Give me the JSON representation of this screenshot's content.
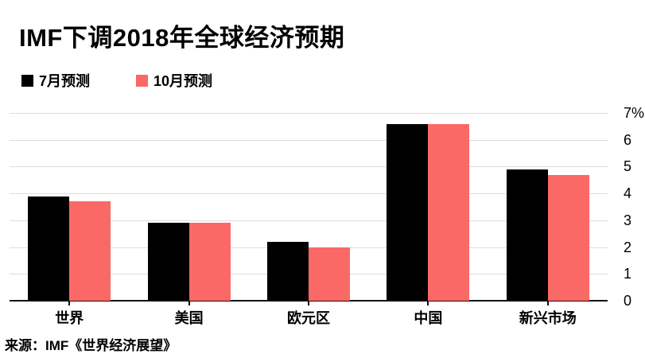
{
  "title": "IMF下调2018年全球经济预期",
  "legend": {
    "items": [
      {
        "label": "7月预测",
        "color": "#000000"
      },
      {
        "label": "10月预测",
        "color": "#FA6966"
      }
    ]
  },
  "source": "来源：IMF《世界经济展望》",
  "colors": {
    "july_series": "#000000",
    "october_series": "#FA6966",
    "gridline": "#dddddd",
    "axis": "#111111"
  },
  "chart_data": {
    "type": "bar",
    "title": "IMF下调2018年全球经济预期",
    "categories": [
      "世界",
      "美国",
      "欧元区",
      "中国",
      "新兴市场"
    ],
    "series": [
      {
        "name": "7月预测",
        "color": "#000000",
        "values": [
          3.9,
          2.9,
          2.2,
          6.6,
          4.9
        ]
      },
      {
        "name": "10月预测",
        "color": "#FA6966",
        "values": [
          3.7,
          2.9,
          2.0,
          6.6,
          4.7
        ]
      }
    ],
    "xlabel": "",
    "ylabel": "",
    "unit": "%",
    "ylim": [
      0,
      7
    ],
    "yticks": [
      0,
      1,
      2,
      3,
      4,
      5,
      6,
      7
    ],
    "ytick_labels": [
      "0",
      "1",
      "2",
      "3",
      "4",
      "5",
      "6",
      "7%"
    ],
    "grid": true,
    "yaxis_position": "right",
    "legend_position": "top-left",
    "source": "来源：IMF《世界经济展望》"
  }
}
